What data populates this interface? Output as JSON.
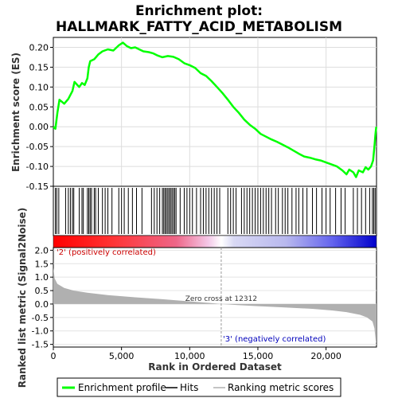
{
  "chart_data": [
    {
      "type": "line",
      "title": "Enrichment plot:",
      "subtitle": "HALLMARK_FATTY_ACID_METABOLISM",
      "ylabel": "Enrichment score (ES)",
      "xlim": [
        0,
        23700
      ],
      "ylim": [
        -0.15,
        0.225
      ],
      "yticks": [
        "0.20",
        "0.15",
        "0.10",
        "0.05",
        "0.00",
        "-0.05",
        "-0.10",
        "-0.15"
      ],
      "grid": true,
      "series": [
        {
          "name": "Enrichment profile",
          "color": "#00ff00",
          "points": [
            [
              0,
              0
            ],
            [
              150,
              -0.005
            ],
            [
              300,
              0.035
            ],
            [
              450,
              0.068
            ],
            [
              800,
              0.058
            ],
            [
              1100,
              0.07
            ],
            [
              1400,
              0.09
            ],
            [
              1550,
              0.113
            ],
            [
              1900,
              0.1
            ],
            [
              2100,
              0.11
            ],
            [
              2300,
              0.105
            ],
            [
              2500,
              0.122
            ],
            [
              2600,
              0.15
            ],
            [
              2700,
              0.165
            ],
            [
              3000,
              0.17
            ],
            [
              3300,
              0.182
            ],
            [
              3600,
              0.19
            ],
            [
              4000,
              0.195
            ],
            [
              4400,
              0.192
            ],
            [
              4800,
              0.205
            ],
            [
              5100,
              0.212
            ],
            [
              5400,
              0.203
            ],
            [
              5700,
              0.198
            ],
            [
              6000,
              0.2
            ],
            [
              6300,
              0.195
            ],
            [
              6600,
              0.19
            ],
            [
              7000,
              0.188
            ],
            [
              7300,
              0.185
            ],
            [
              7600,
              0.18
            ],
            [
              8000,
              0.175
            ],
            [
              8400,
              0.178
            ],
            [
              8800,
              0.176
            ],
            [
              9200,
              0.17
            ],
            [
              9600,
              0.16
            ],
            [
              10000,
              0.155
            ],
            [
              10400,
              0.148
            ],
            [
              10800,
              0.135
            ],
            [
              11200,
              0.128
            ],
            [
              11600,
              0.115
            ],
            [
              12000,
              0.1
            ],
            [
              12400,
              0.085
            ],
            [
              12800,
              0.068
            ],
            [
              13200,
              0.05
            ],
            [
              13600,
              0.035
            ],
            [
              14000,
              0.018
            ],
            [
              14400,
              0.005
            ],
            [
              14800,
              -0.005
            ],
            [
              15200,
              -0.018
            ],
            [
              15600,
              -0.025
            ],
            [
              16000,
              -0.032
            ],
            [
              16400,
              -0.038
            ],
            [
              16800,
              -0.045
            ],
            [
              17200,
              -0.052
            ],
            [
              17600,
              -0.06
            ],
            [
              18000,
              -0.068
            ],
            [
              18400,
              -0.075
            ],
            [
              18800,
              -0.078
            ],
            [
              19200,
              -0.082
            ],
            [
              19600,
              -0.085
            ],
            [
              20000,
              -0.09
            ],
            [
              20400,
              -0.095
            ],
            [
              20800,
              -0.1
            ],
            [
              21200,
              -0.11
            ],
            [
              21500,
              -0.12
            ],
            [
              21700,
              -0.108
            ],
            [
              22000,
              -0.115
            ],
            [
              22200,
              -0.127
            ],
            [
              22400,
              -0.11
            ],
            [
              22700,
              -0.115
            ],
            [
              22900,
              -0.102
            ],
            [
              23100,
              -0.108
            ],
            [
              23300,
              -0.1
            ],
            [
              23450,
              -0.085
            ],
            [
              23550,
              -0.05
            ],
            [
              23620,
              -0.02
            ],
            [
              23680,
              0
            ]
          ]
        }
      ]
    },
    {
      "type": "scatter",
      "name": "Hits",
      "hits": [
        150,
        250,
        400,
        900,
        1100,
        1250,
        1400,
        1500,
        1900,
        2100,
        2200,
        2500,
        2600,
        2700,
        2800,
        3000,
        3100,
        3300,
        3600,
        3800,
        4000,
        4300,
        4800,
        5000,
        5200,
        5500,
        5800,
        6100,
        6500,
        7200,
        7400,
        7600,
        7800,
        8000,
        8100,
        8200,
        8300,
        8400,
        8500,
        8600,
        8700,
        8800,
        8900,
        9000,
        9300,
        9600,
        9800,
        10000,
        10200,
        10500,
        10800,
        11000,
        11200,
        11400,
        11600,
        11800,
        12000,
        12200,
        12800,
        13000,
        13200,
        13400,
        13800,
        14000,
        14200,
        14400,
        14600,
        14800,
        15000,
        15200,
        15400,
        15600,
        15800,
        16000,
        16300,
        16500,
        16800,
        17000,
        17200,
        17500,
        17800,
        18000,
        18300,
        18600,
        19000,
        19300,
        19700,
        20000,
        20300,
        20700,
        21100,
        21400,
        22000,
        22300,
        22600,
        22900,
        23200,
        23400,
        23500,
        23600
      ]
    },
    {
      "type": "area",
      "ylabel": "Ranked list metric (Signal2Noise)",
      "xlabel": "Rank in Ordered Dataset",
      "xlim": [
        0,
        23700
      ],
      "ylim": [
        -1.6,
        2.1
      ],
      "xticks": [
        "0",
        "5,000",
        "10,000",
        "15,000",
        "20,000"
      ],
      "yticks": [
        "2.0",
        "1.5",
        "1.0",
        "0.5",
        "0.0",
        "-0.5",
        "-1.0",
        "-1.5"
      ],
      "series": [
        {
          "name": "Ranking metric scores",
          "color": "#b0b0b0",
          "points": [
            [
              0,
              1.35
            ],
            [
              100,
              0.95
            ],
            [
              300,
              0.75
            ],
            [
              800,
              0.6
            ],
            [
              1500,
              0.5
            ],
            [
              2500,
              0.42
            ],
            [
              4000,
              0.33
            ],
            [
              6000,
              0.25
            ],
            [
              8000,
              0.18
            ],
            [
              10000,
              0.1
            ],
            [
              11500,
              0.04
            ],
            [
              12312,
              0
            ],
            [
              13500,
              -0.04
            ],
            [
              15000,
              -0.08
            ],
            [
              17000,
              -0.13
            ],
            [
              19000,
              -0.18
            ],
            [
              20500,
              -0.24
            ],
            [
              21500,
              -0.3
            ],
            [
              22500,
              -0.4
            ],
            [
              23000,
              -0.5
            ],
            [
              23400,
              -0.65
            ],
            [
              23550,
              -0.9
            ],
            [
              23650,
              -1.4
            ],
            [
              23700,
              -1.45
            ]
          ]
        }
      ],
      "annotations": {
        "positive": "'2' (positively correlated)",
        "zero_cross": "Zero cross at 12312",
        "negative": "'3' (negatively correlated)"
      }
    }
  ],
  "legend": {
    "items": [
      {
        "label": "Enrichment profile",
        "color": "#00ff00"
      },
      {
        "label": "Hits",
        "color": "#000000"
      },
      {
        "label": "Ranking metric scores",
        "color": "#b0b0b0"
      }
    ]
  }
}
